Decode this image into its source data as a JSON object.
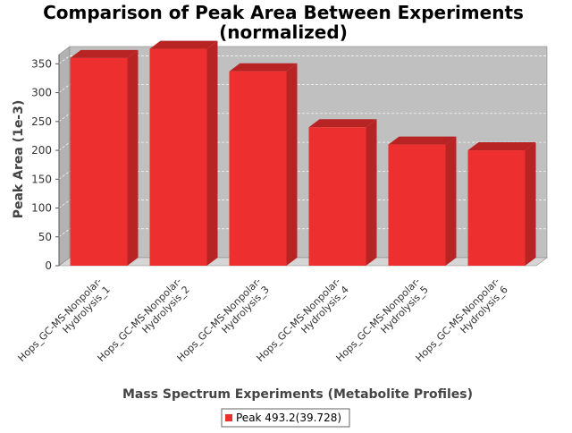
{
  "chart_data": {
    "type": "bar",
    "title": "Comparison of Peak Area Between Experiments",
    "subtitle": "(normalized)",
    "xlabel": "Mass Spectrum Experiments (Metabolite Profiles)",
    "ylabel": "Peak Area (1e-3)",
    "ylim": [
      0,
      380
    ],
    "yticks": [
      0,
      50,
      100,
      150,
      200,
      250,
      300,
      350
    ],
    "grid": true,
    "legend_position": "bottom-center",
    "categories": [
      [
        "Hops_GC-MS-Nonpolar-",
        "Hydrolysis_1"
      ],
      [
        "Hops_GC-MS-Nonpolar-",
        "Hydrolysis_2"
      ],
      [
        "Hops_GC-MS-Nonpolar-",
        "Hydrolysis_3"
      ],
      [
        "Hops_GC-MS-Nonpolar-",
        "Hydrolysis_4"
      ],
      [
        "Hops_GC-MS-Nonpolar-",
        "Hydrolysis_5"
      ],
      [
        "Hops_GC-MS-Nonpolar-",
        "Hydrolysis_6"
      ]
    ],
    "series": [
      {
        "name": "Peak 493.2(39.728)",
        "color": "#ee2f2f",
        "values": [
          360,
          376,
          337,
          240,
          210,
          200
        ]
      }
    ]
  },
  "colors": {
    "plot_background": "#c0c0c0",
    "bar_front": "#ee2f2f",
    "bar_top": "#b82424",
    "bar_side": "#b82424"
  }
}
